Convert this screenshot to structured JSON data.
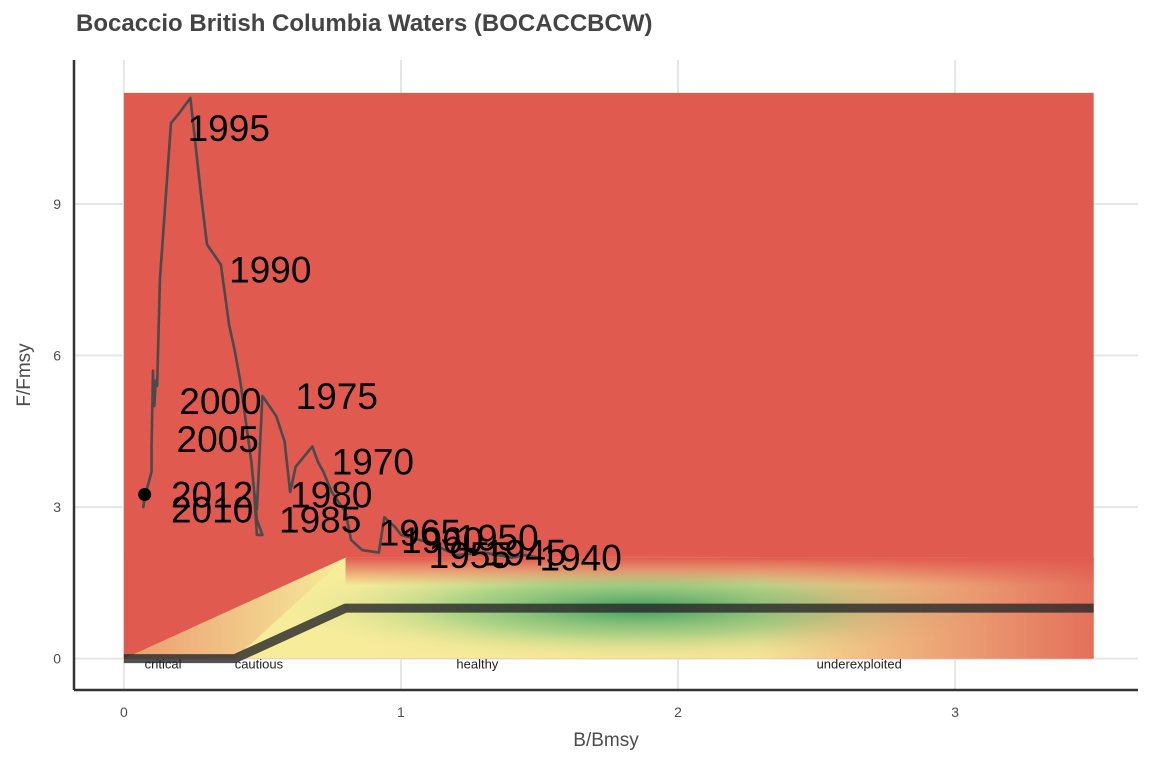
{
  "chart_data": {
    "type": "line",
    "title": "Bocaccio British Columbia Waters (BOCACCBCW)",
    "xlabel": "B/Bmsy",
    "ylabel": "F/Fmsy",
    "xlim": [
      -0.18,
      3.66
    ],
    "ylim": [
      -0.62,
      11.85
    ],
    "x_ticks": [
      "0",
      "1",
      "2",
      "3"
    ],
    "y_ticks": [
      "0",
      "3",
      "6",
      "9"
    ],
    "grid": true,
    "colors": {
      "background_red": "#e05a50",
      "yellow": "#f7ec9a",
      "green": "#2e9a5e",
      "trajectory": "#4a4a4a",
      "reference_line": "#2b2b2b"
    },
    "reference_line": {
      "x": [
        0,
        0.4,
        0.8,
        3.5
      ],
      "y": [
        0,
        0,
        1,
        1
      ]
    },
    "zones": [
      {
        "label": "critical",
        "x": 0.075
      },
      {
        "label": "cautious",
        "x": 0.4
      },
      {
        "label": "healthy",
        "x": 1.2
      },
      {
        "label": "underexploited",
        "x": 2.5
      }
    ],
    "series": [
      {
        "x": [
          1.5,
          1.45,
          1.4,
          1.3,
          1.2,
          1.1,
          1.0,
          0.98,
          0.94,
          0.92,
          0.86,
          0.82,
          0.8,
          0.75,
          0.72,
          0.7,
          0.68,
          0.62,
          0.6,
          0.58,
          0.55,
          0.5,
          0.48,
          0.47,
          0.48,
          0.5,
          0.48,
          0.46,
          0.42,
          0.4,
          0.38,
          0.35,
          0.3,
          0.28,
          0.24,
          0.2,
          0.17,
          0.13,
          0.12,
          0.115,
          0.11,
          0.105,
          0.1,
          0.1,
          0.09,
          0.08,
          0.07,
          0.075
        ],
        "y": [
          2.0,
          2.05,
          2.0,
          2.1,
          2.05,
          2.3,
          2.45,
          2.6,
          2.8,
          2.1,
          2.15,
          2.35,
          2.9,
          3.3,
          3.7,
          3.9,
          4.2,
          3.8,
          3.3,
          4.3,
          4.8,
          5.2,
          2.95,
          3.3,
          2.45,
          2.45,
          2.75,
          3.9,
          5.5,
          6.1,
          6.6,
          7.8,
          8.2,
          9.1,
          11.1,
          10.8,
          10.6,
          7.5,
          5.4,
          5.5,
          5.0,
          5.7,
          4.2,
          3.7,
          3.5,
          3.3,
          3.0,
          3.25
        ]
      }
    ],
    "year_labels": [
      {
        "text": "1940",
        "x": 1.5,
        "y": 2.0
      },
      {
        "text": "1945",
        "x": 1.3,
        "y": 2.1
      },
      {
        "text": "1950",
        "x": 1.2,
        "y": 2.4
      },
      {
        "text": "1955",
        "x": 1.1,
        "y": 2.05
      },
      {
        "text": "1960",
        "x": 1.0,
        "y": 2.35
      },
      {
        "text": "1965",
        "x": 0.92,
        "y": 2.5
      },
      {
        "text": "1970",
        "x": 0.75,
        "y": 3.9
      },
      {
        "text": "1975",
        "x": 0.62,
        "y": 5.2
      },
      {
        "text": "1980",
        "x": 0.6,
        "y": 3.25
      },
      {
        "text": "1985",
        "x": 0.56,
        "y": 2.75
      },
      {
        "text": "1990",
        "x": 0.38,
        "y": 7.7
      },
      {
        "text": "1995",
        "x": 0.23,
        "y": 10.5
      },
      {
        "text": "2000",
        "x": 0.2,
        "y": 5.1
      },
      {
        "text": "2005",
        "x": 0.19,
        "y": 4.35
      },
      {
        "text": "2010",
        "x": 0.17,
        "y": 2.95
      },
      {
        "text": "2012",
        "x": 0.17,
        "y": 3.25
      }
    ],
    "current_point": {
      "x": 0.075,
      "y": 3.25
    }
  }
}
